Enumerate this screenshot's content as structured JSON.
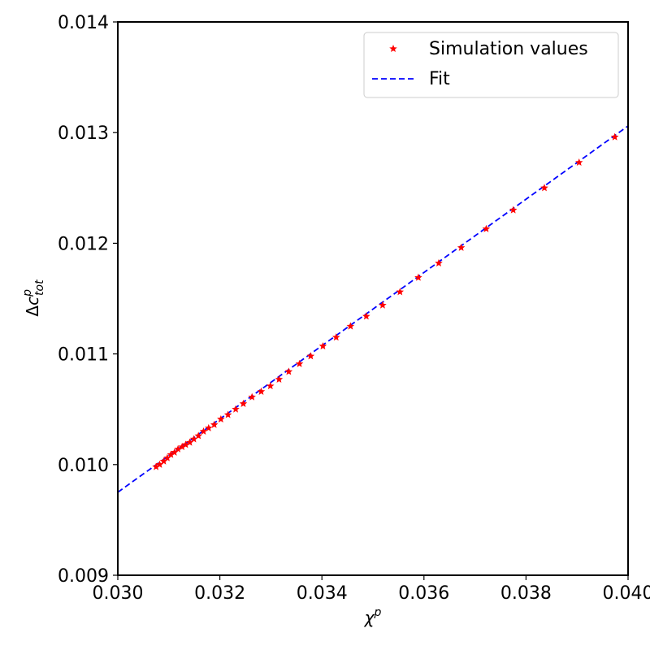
{
  "chart_data": {
    "type": "scatter",
    "xlim": [
      0.03,
      0.04
    ],
    "ylim": [
      0.009,
      0.014
    ],
    "xticks": [
      "0.030",
      "0.032",
      "0.034",
      "0.036",
      "0.038",
      "0.040"
    ],
    "yticks": [
      "0.009",
      "0.010",
      "0.011",
      "0.012",
      "0.013",
      "0.014"
    ],
    "xlabel": "χ^p",
    "ylabel": "Δc^p_tot",
    "grid": false,
    "legend_position": "top-right",
    "series": [
      {
        "name": "Simulation values",
        "kind": "scatter",
        "marker": "star",
        "color": "#ff0000",
        "points": [
          [
            0.03075,
            0.00998
          ],
          [
            0.03082,
            0.01
          ],
          [
            0.0309,
            0.01003
          ],
          [
            0.03097,
            0.01006
          ],
          [
            0.03104,
            0.01009
          ],
          [
            0.03111,
            0.01011
          ],
          [
            0.03118,
            0.01014
          ],
          [
            0.03126,
            0.01016
          ],
          [
            0.03133,
            0.01018
          ],
          [
            0.03141,
            0.0102
          ],
          [
            0.03149,
            0.01023
          ],
          [
            0.03158,
            0.01026
          ],
          [
            0.03168,
            0.0103
          ],
          [
            0.03178,
            0.01033
          ],
          [
            0.03189,
            0.01036
          ],
          [
            0.03202,
            0.01041
          ],
          [
            0.03216,
            0.01045
          ],
          [
            0.03231,
            0.0105
          ],
          [
            0.03246,
            0.01055
          ],
          [
            0.03263,
            0.01061
          ],
          [
            0.03281,
            0.01066
          ],
          [
            0.03299,
            0.01071
          ],
          [
            0.03316,
            0.01077
          ],
          [
            0.03335,
            0.01084
          ],
          [
            0.03356,
            0.01091
          ],
          [
            0.03378,
            0.01098
          ],
          [
            0.03402,
            0.01107
          ],
          [
            0.03428,
            0.01115
          ],
          [
            0.03456,
            0.01125
          ],
          [
            0.03487,
            0.01134
          ],
          [
            0.03519,
            0.01144
          ],
          [
            0.03553,
            0.01156
          ],
          [
            0.03589,
            0.01169
          ],
          [
            0.03629,
            0.01182
          ],
          [
            0.03673,
            0.01196
          ],
          [
            0.03722,
            0.01213
          ],
          [
            0.03775,
            0.0123
          ],
          [
            0.03836,
            0.0125
          ],
          [
            0.03904,
            0.01273
          ],
          [
            0.03974,
            0.01296
          ]
        ]
      },
      {
        "name": "Fit",
        "kind": "line",
        "style": "dashed",
        "color": "#0000ff",
        "points": [
          [
            0.03,
            0.00975
          ],
          [
            0.04,
            0.01306
          ]
        ]
      }
    ]
  }
}
